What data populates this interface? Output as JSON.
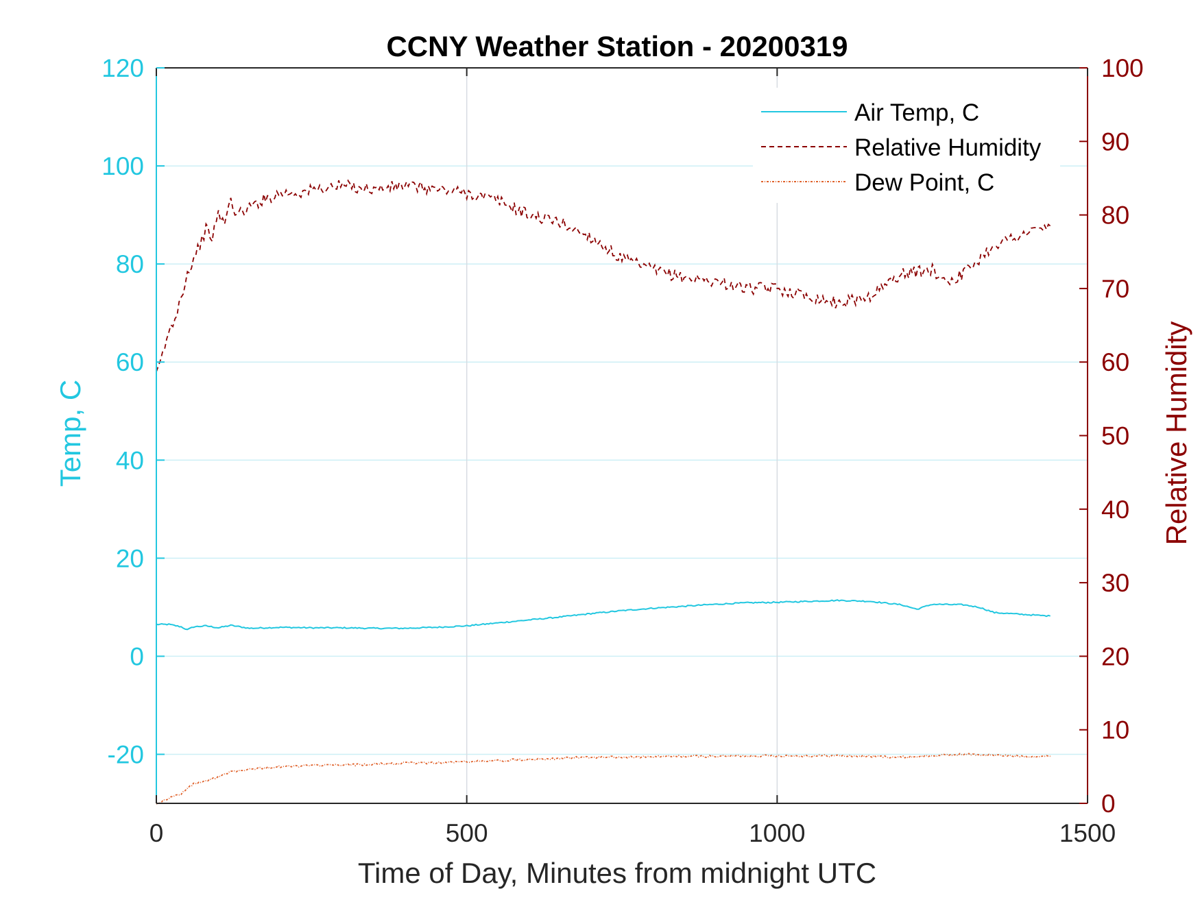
{
  "chart_data": {
    "type": "line",
    "title": "CCNY Weather Station - 20200319",
    "xlabel": "Time of Day, Minutes from midnight UTC",
    "ylabel_left": "Temp, C",
    "ylabel_right": "Relative Humidity",
    "xlim": [
      0,
      1500
    ],
    "ylim_left": [
      -30,
      120
    ],
    "ylim_right": [
      0,
      100
    ],
    "x_ticks": [
      "0",
      "500",
      "1000",
      "1500"
    ],
    "x_tick_values": [
      0,
      500,
      1000,
      1500
    ],
    "y_left_ticks": [
      "-20",
      "0",
      "20",
      "40",
      "60",
      "80",
      "100",
      "120"
    ],
    "y_left_tick_values": [
      -20,
      0,
      20,
      40,
      60,
      80,
      100,
      120
    ],
    "y_right_ticks": [
      "0",
      "10",
      "20",
      "30",
      "40",
      "50",
      "60",
      "70",
      "80",
      "90",
      "100"
    ],
    "y_right_tick_values": [
      0,
      10,
      20,
      30,
      40,
      50,
      60,
      70,
      80,
      90,
      100
    ],
    "grid": true,
    "legend_position": "top-right",
    "colors": {
      "left_axis": "#22c7e0",
      "right_axis": "#8b0000",
      "dew_point": "#e0622b",
      "grid_x": "#d7dce2",
      "grid_y": "#cdeff6",
      "box": "#262626"
    },
    "series": [
      {
        "name": "Air Temp, C",
        "axis": "left",
        "style": "solid",
        "color": "#22c7e0",
        "x": [
          0,
          20,
          40,
          50,
          60,
          80,
          100,
          120,
          150,
          200,
          250,
          300,
          350,
          400,
          450,
          500,
          550,
          600,
          650,
          700,
          750,
          800,
          850,
          900,
          950,
          1000,
          1050,
          1100,
          1150,
          1200,
          1225,
          1250,
          1300,
          1325,
          1350,
          1400,
          1440
        ],
        "values": [
          6.5,
          6.5,
          6.0,
          5.4,
          6.0,
          6.2,
          5.8,
          6.3,
          5.7,
          5.9,
          5.8,
          5.8,
          5.7,
          5.7,
          5.9,
          6.2,
          6.8,
          7.4,
          8.0,
          8.7,
          9.3,
          9.8,
          10.2,
          10.6,
          10.9,
          11.0,
          11.2,
          11.4,
          11.2,
          10.5,
          9.6,
          10.6,
          10.5,
          10.0,
          8.9,
          8.5,
          8.2
        ]
      },
      {
        "name": "Relative Humidity",
        "axis": "right",
        "style": "dashed",
        "color": "#8b0000",
        "x": [
          0,
          10,
          20,
          30,
          40,
          50,
          60,
          70,
          80,
          90,
          100,
          110,
          120,
          130,
          150,
          170,
          200,
          230,
          260,
          300,
          350,
          400,
          450,
          500,
          550,
          600,
          650,
          700,
          750,
          800,
          850,
          900,
          950,
          1000,
          1050,
          1100,
          1150,
          1200,
          1250,
          1275,
          1300,
          1325,
          1350,
          1400,
          1440
        ],
        "values": [
          58,
          61,
          64,
          66,
          69,
          72,
          74,
          76,
          78,
          77,
          80,
          79,
          82,
          80,
          81,
          82,
          83,
          83,
          83.5,
          84,
          83.5,
          84,
          83.5,
          83,
          82,
          80,
          79,
          77,
          74,
          72.5,
          71.5,
          71,
          70,
          70,
          69,
          68,
          69,
          72,
          72.5,
          71,
          72,
          74,
          76,
          77.5,
          78.5
        ]
      },
      {
        "name": "Dew Point, C",
        "axis": "left",
        "style": "dash-dot",
        "color": "#e0622b",
        "x": [
          0,
          20,
          40,
          60,
          80,
          100,
          120,
          150,
          200,
          250,
          300,
          350,
          400,
          450,
          500,
          550,
          600,
          650,
          700,
          750,
          800,
          850,
          900,
          950,
          1000,
          1050,
          1100,
          1150,
          1200,
          1250,
          1300,
          1350,
          1400,
          1440
        ],
        "values": [
          -30,
          -29,
          -28,
          -26,
          -25.5,
          -24.5,
          -23.5,
          -23,
          -22.5,
          -22.3,
          -22.2,
          -22.0,
          -21.8,
          -21.7,
          -21.5,
          -21.3,
          -21.0,
          -20.8,
          -20.6,
          -20.6,
          -20.5,
          -20.4,
          -20.4,
          -20.3,
          -20.3,
          -20.3,
          -20.3,
          -20.4,
          -20.6,
          -20.3,
          -20.0,
          -20.2,
          -20.4,
          -20.4
        ]
      }
    ]
  }
}
